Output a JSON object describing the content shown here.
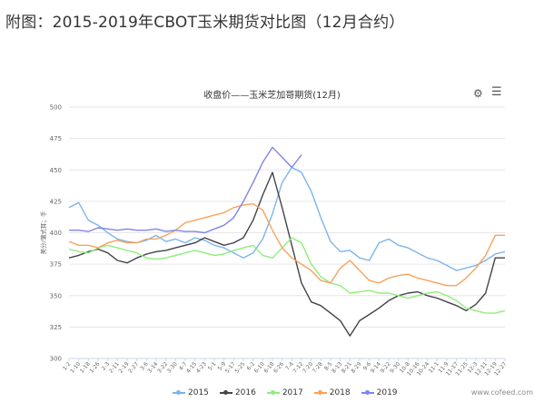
{
  "caption": "附图：2015-2019年CBOT玉米期货对比图（12月合约）",
  "chart_data": {
    "type": "line",
    "title": "收盘价——玉米芝加哥期货(12月)",
    "ylabel": "美分/蒲式耳；手",
    "xlabel": "",
    "ylim": [
      300,
      500
    ],
    "yticks": [
      300,
      325,
      350,
      375,
      400,
      425,
      450,
      475,
      500
    ],
    "categories": [
      "1-2",
      "1-10",
      "1-18",
      "1-26",
      "2-3",
      "2-11",
      "2-19",
      "2-27",
      "3-6",
      "3-14",
      "3-22",
      "3-30",
      "4-7",
      "4-15",
      "4-23",
      "5-1",
      "5-9",
      "5-17",
      "5-25",
      "6-2",
      "6-10",
      "6-18",
      "6-26",
      "7-4",
      "7-12",
      "7-20",
      "7-28",
      "8-5",
      "8-13",
      "8-21",
      "8-29",
      "9-6",
      "9-14",
      "9-22",
      "9-30",
      "10-8",
      "10-16",
      "10-24",
      "11-1",
      "11-9",
      "11-17",
      "11-25",
      "12-3",
      "12-11",
      "12-19",
      "12-27"
    ],
    "series": [
      {
        "name": "2015",
        "color": "#7cb5ec",
        "values": [
          420,
          424,
          410,
          406,
          400,
          395,
          393,
          392,
          394,
          398,
          393,
          395,
          392,
          396,
          394,
          390,
          388,
          384,
          380,
          384,
          395,
          415,
          440,
          452,
          448,
          433,
          412,
          393,
          385,
          386,
          380,
          378,
          392,
          395,
          390,
          388,
          384,
          380,
          378,
          374,
          370,
          372,
          374,
          378,
          383,
          385
        ]
      },
      {
        "name": "2016",
        "color": "#434348",
        "values": [
          380,
          382,
          385,
          387,
          384,
          378,
          376,
          380,
          383,
          385,
          386,
          388,
          390,
          392,
          396,
          393,
          390,
          392,
          396,
          410,
          430,
          448,
          420,
          390,
          360,
          345,
          342,
          336,
          330,
          318,
          330,
          335,
          340,
          346,
          350,
          352,
          353,
          350,
          348,
          345,
          342,
          338,
          343,
          352,
          380,
          380
        ]
      },
      {
        "name": "2017",
        "color": "#90ed7d",
        "values": [
          387,
          385,
          384,
          388,
          390,
          388,
          386,
          384,
          380,
          379,
          380,
          382,
          384,
          386,
          384,
          382,
          383,
          386,
          388,
          390,
          382,
          380,
          388,
          396,
          392,
          375,
          365,
          360,
          358,
          352,
          353,
          354,
          352,
          352,
          350,
          348,
          350,
          352,
          353,
          350,
          346,
          340,
          338,
          336,
          336,
          338
        ]
      },
      {
        "name": "2018",
        "color": "#f7a35c",
        "values": [
          393,
          390,
          390,
          388,
          392,
          394,
          392,
          392,
          395,
          395,
          398,
          402,
          408,
          410,
          412,
          414,
          416,
          420,
          422,
          423,
          418,
          402,
          388,
          380,
          375,
          370,
          362,
          360,
          372,
          378,
          370,
          362,
          360,
          364,
          366,
          367,
          364,
          362,
          360,
          358,
          358,
          364,
          372,
          382,
          398,
          398
        ]
      },
      {
        "name": "2019",
        "color": "#8085e9",
        "values": [
          402,
          402,
          401,
          404,
          403,
          402,
          403,
          402,
          402,
          403,
          401,
          402,
          401,
          401,
          400,
          403,
          406,
          412,
          425,
          440,
          456,
          468,
          460,
          452,
          462,
          null,
          null,
          null,
          null,
          null,
          null,
          null,
          null,
          null,
          null,
          null,
          null,
          null,
          null,
          null,
          null,
          null,
          null,
          null,
          null,
          null
        ]
      }
    ]
  },
  "toolbar": {
    "gear_icon": "gear-icon",
    "menu_icon": "menu-icon"
  },
  "watermark": "www.cofeed.com"
}
